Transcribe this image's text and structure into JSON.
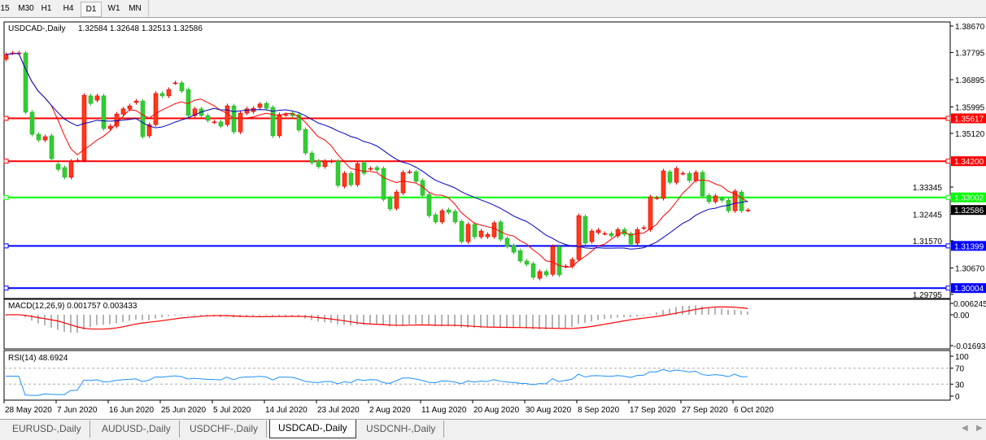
{
  "timeframes": [
    {
      "label": "15",
      "active": false
    },
    {
      "label": "M30",
      "active": false
    },
    {
      "label": "H1",
      "active": false
    },
    {
      "label": "H4",
      "active": false
    },
    {
      "label": "D1",
      "active": true
    },
    {
      "label": "W1",
      "active": false
    },
    {
      "label": "MN",
      "active": false
    }
  ],
  "chart": {
    "symbol_title": "USDCAD-,Daily",
    "ohlc_text": "1.32584 1.32648 1.32513 1.32586",
    "last_bar": {
      "open": 1.32584,
      "high": 1.32648,
      "low": 1.32513,
      "close": 1.32586
    },
    "current_price_label": "1.32586",
    "price_axis": [
      "1.38670",
      "1.37795",
      "1.36895",
      "1.35995",
      "1.35120",
      "1.33345",
      "1.32445",
      "1.31570",
      "1.30670",
      "1.29795"
    ],
    "hlines": [
      {
        "price": 1.35617,
        "label": "1.35617",
        "color": "#ff0000"
      },
      {
        "price": 1.342,
        "label": "1.34200",
        "color": "#ff0000"
      },
      {
        "price": 1.33002,
        "label": "1.33002",
        "color": "#00ff00"
      },
      {
        "price": 1.31399,
        "label": "1.31399",
        "color": "#0000ff"
      },
      {
        "price": 1.30004,
        "label": "1.30004",
        "color": "#0000ff"
      }
    ],
    "colors": {
      "bull": "#ff3a1a",
      "bear": "#32cd32",
      "ma_fast": "#ff0000",
      "ma_slow": "#0000c0",
      "macd_hist": "#b4b4b4",
      "macd_signal": "#ff0000",
      "rsi": "#1e90ff"
    },
    "candles_oc": [
      [
        1.3757,
        1.3773
      ],
      [
        1.3778,
        1.3778
      ],
      [
        1.3778,
        1.3778
      ],
      [
        1.3778,
        1.3582
      ],
      [
        1.3582,
        1.3509
      ],
      [
        1.3509,
        1.349
      ],
      [
        1.349,
        1.3501
      ],
      [
        1.3504,
        1.3428
      ],
      [
        1.341,
        1.3393
      ],
      [
        1.3399,
        1.3367
      ],
      [
        1.3367,
        1.342
      ],
      [
        1.3423,
        1.3423
      ],
      [
        1.3423,
        1.3638
      ],
      [
        1.3636,
        1.3611
      ],
      [
        1.3622,
        1.3636
      ],
      [
        1.3636,
        1.3528
      ],
      [
        1.3528,
        1.3536
      ],
      [
        1.3536,
        1.3576
      ],
      [
        1.3576,
        1.3593
      ],
      [
        1.3593,
        1.3603
      ],
      [
        1.3614,
        1.3619
      ],
      [
        1.3619,
        1.3501
      ],
      [
        1.3504,
        1.3541
      ],
      [
        1.3541,
        1.3644
      ],
      [
        1.3644,
        1.3636
      ],
      [
        1.3636,
        1.3657
      ],
      [
        1.3679,
        1.3679
      ],
      [
        1.3679,
        1.3652
      ],
      [
        1.3657,
        1.3571
      ],
      [
        1.3571,
        1.3593
      ],
      [
        1.3593,
        1.3571
      ],
      [
        1.3571,
        1.3555
      ],
      [
        1.355,
        1.355
      ],
      [
        1.355,
        1.3536
      ],
      [
        1.3541,
        1.3603
      ],
      [
        1.3603,
        1.3517
      ],
      [
        1.3517,
        1.3579
      ],
      [
        1.3579,
        1.3593
      ],
      [
        1.3584,
        1.3595
      ],
      [
        1.3598,
        1.3609
      ],
      [
        1.3611,
        1.3595
      ],
      [
        1.3598,
        1.3504
      ],
      [
        1.3504,
        1.3574
      ],
      [
        1.3574,
        1.3574
      ],
      [
        1.3579,
        1.3571
      ],
      [
        1.3574,
        1.3523
      ],
      [
        1.3525,
        1.3447
      ],
      [
        1.3447,
        1.3415
      ],
      [
        1.342,
        1.3402
      ],
      [
        1.3402,
        1.342
      ],
      [
        1.342,
        1.342
      ],
      [
        1.342,
        1.334
      ],
      [
        1.3337,
        1.338
      ],
      [
        1.338,
        1.3342
      ],
      [
        1.3342,
        1.3412
      ],
      [
        1.3415,
        1.338
      ],
      [
        1.3396,
        1.3396
      ],
      [
        1.3399,
        1.3391
      ],
      [
        1.3396,
        1.3294
      ],
      [
        1.3299,
        1.3262
      ],
      [
        1.3264,
        1.3318
      ],
      [
        1.3315,
        1.3383
      ],
      [
        1.3385,
        1.3385
      ],
      [
        1.3385,
        1.3353
      ],
      [
        1.3356,
        1.3307
      ],
      [
        1.331,
        1.324
      ],
      [
        1.3243,
        1.3219
      ],
      [
        1.3219,
        1.3256
      ],
      [
        1.3259,
        1.3251
      ],
      [
        1.3254,
        1.3219
      ],
      [
        1.3221,
        1.3154
      ],
      [
        1.3154,
        1.3211
      ],
      [
        1.3211,
        1.317
      ],
      [
        1.317,
        1.3189
      ],
      [
        1.317,
        1.3178
      ],
      [
        1.317,
        1.3216
      ],
      [
        1.3219,
        1.3162
      ],
      [
        1.3165,
        1.3138
      ],
      [
        1.3141,
        1.3119
      ],
      [
        1.3124,
        1.309
      ],
      [
        1.309,
        1.3079
      ],
      [
        1.3081,
        1.3036
      ],
      [
        1.3033,
        1.3055
      ],
      [
        1.3055,
        1.3044
      ],
      [
        1.3046,
        1.3138
      ],
      [
        1.3138,
        1.3044
      ],
      [
        1.3073,
        1.3073
      ],
      [
        1.3073,
        1.3095
      ],
      [
        1.3095,
        1.324
      ],
      [
        1.3237,
        1.3149
      ],
      [
        1.3154,
        1.3189
      ],
      [
        1.3184,
        1.3192
      ],
      [
        1.3181,
        1.3181
      ],
      [
        1.3181,
        1.3173
      ],
      [
        1.3173,
        1.3194
      ],
      [
        1.3194,
        1.3178
      ],
      [
        1.3181,
        1.3146
      ],
      [
        1.3149,
        1.3194
      ],
      [
        1.32,
        1.32
      ],
      [
        1.3194,
        1.3302
      ],
      [
        1.3299,
        1.3299
      ],
      [
        1.3297,
        1.3388
      ],
      [
        1.3385,
        1.335
      ],
      [
        1.335,
        1.3396
      ],
      [
        1.338,
        1.338
      ],
      [
        1.338,
        1.3356
      ],
      [
        1.3356,
        1.3383
      ],
      [
        1.3383,
        1.3305
      ],
      [
        1.3307,
        1.3286
      ],
      [
        1.3286,
        1.3305
      ],
      [
        1.3297,
        1.3291
      ],
      [
        1.3291,
        1.3256
      ],
      [
        1.3256,
        1.3321
      ],
      [
        1.3318,
        1.3256
      ],
      [
        1.32584,
        1.32586
      ]
    ]
  },
  "macd": {
    "title": "MACD(12,26,9) 0.001757 0.003433",
    "axis": [
      "0.006245",
      "0.00",
      "-0.016933"
    ]
  },
  "rsi": {
    "title": "RSI(14) 48.6924",
    "axis": [
      "100",
      "70",
      "30",
      "0"
    ]
  },
  "date_axis": [
    "28 May 2020",
    "7 Jun 2020",
    "16 Jun 2020",
    "25 Jun 2020",
    "5 Jul 2020",
    "14 Jul 2020",
    "23 Jul 2020",
    "2 Aug 2020",
    "11 Aug 2020",
    "20 Aug 2020",
    "30 Aug 2020",
    "8 Sep 2020",
    "17 Sep 2020",
    "27 Sep 2020",
    "6 Oct 2020"
  ],
  "bottom_tabs": [
    {
      "label": "EURUSD-,Daily",
      "active": false
    },
    {
      "label": "AUDUSD-,Daily",
      "active": false
    },
    {
      "label": "USDCHF-,Daily",
      "active": false
    },
    {
      "label": "USDCAD-,Daily",
      "active": true
    },
    {
      "label": "USDCNH-,Daily",
      "active": false
    }
  ]
}
